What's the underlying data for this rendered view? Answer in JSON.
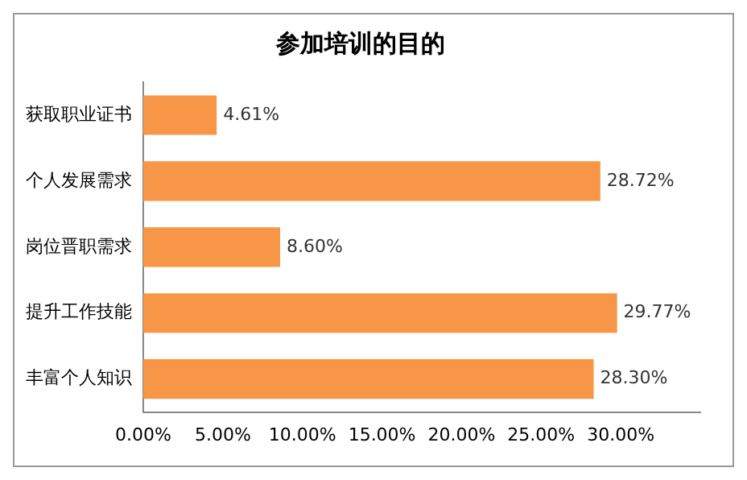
{
  "chart_data": {
    "type": "bar",
    "orientation": "horizontal",
    "title": "参加培训的目的",
    "categories": [
      "获取职业证书",
      "个人发展需求",
      "岗位晋职需求",
      "提升工作技能",
      "丰富个人知识"
    ],
    "values": [
      4.61,
      28.72,
      8.6,
      29.77,
      28.3
    ],
    "value_labels": [
      "4.61%",
      "28.72%",
      "8.60%",
      "29.77%",
      "28.30%"
    ],
    "color": "#f79646",
    "xlim": [
      0,
      35
    ],
    "xticks": [
      {
        "value": 0,
        "label": "0.00%"
      },
      {
        "value": 5,
        "label": "5.00%"
      },
      {
        "value": 10,
        "label": "10.00%"
      },
      {
        "value": 15,
        "label": "15.00%"
      },
      {
        "value": 20,
        "label": "20.00%"
      },
      {
        "value": 25,
        "label": "25.00%"
      },
      {
        "value": 30,
        "label": "30.00%"
      }
    ],
    "grid": false,
    "legend": false
  }
}
